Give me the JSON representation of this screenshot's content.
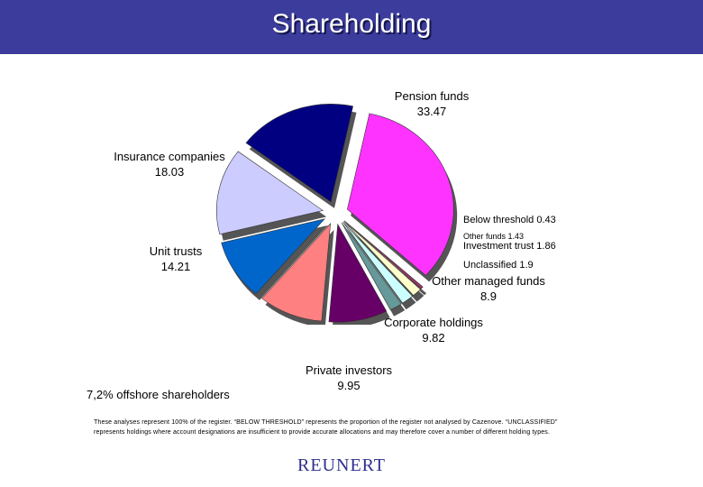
{
  "header": {
    "title": "Shareholding"
  },
  "chart_data": {
    "type": "pie",
    "exploded": true,
    "slices": [
      {
        "label": "Pension funds",
        "value": 33.47,
        "color": "#ff33ff"
      },
      {
        "label": "Below threshold",
        "value": 0.43,
        "color": "#993366"
      },
      {
        "label": "Other funds",
        "value": 1.43,
        "color": "#ffffcc"
      },
      {
        "label": "Investment trust",
        "value": 1.86,
        "color": "#ccffff"
      },
      {
        "label": "Unclassified",
        "value": 1.9,
        "color": "#669999"
      },
      {
        "label": "Other managed funds",
        "value": 8.9,
        "color": "#660066"
      },
      {
        "label": "Corporate holdings",
        "value": 9.82,
        "color": "#ff8080"
      },
      {
        "label": "Private investors",
        "value": 9.95,
        "color": "#0066cc"
      },
      {
        "label": "Unit trusts",
        "value": 14.21,
        "color": "#ccccff"
      },
      {
        "label": "Insurance companies",
        "value": 18.03,
        "color": "#000080"
      }
    ],
    "labels": {
      "pension_name": "Pension funds",
      "pension_value": "33.47",
      "insurance_name": "Insurance companies",
      "insurance_value": "18.03",
      "below": "Below threshold 0.43",
      "otherfunds": "Other funds 1.43",
      "investment": "Investment trust 1.86",
      "unclassified": "Unclassified 1.9",
      "othermanaged_name": "Other managed funds",
      "othermanaged_value": "8.9",
      "corporate_name": "Corporate holdings",
      "corporate_value": "9.82",
      "private_name": "Private investors",
      "private_value": "9.95",
      "unit_name": "Unit trusts",
      "unit_value": "14.21"
    }
  },
  "notes": {
    "offshore": "7,2% offshore shareholders",
    "footnote": "These analyses represent 100% of the register. “BELOW THRESHOLD” represents the proportion of the register not analysed by Cazenove. “UNCLASSIFIED” represents holdings where account designations are insufficient to provide accurate allocations and may therefore cover a number of different holding types."
  },
  "logo": {
    "text": "REUNERT"
  }
}
